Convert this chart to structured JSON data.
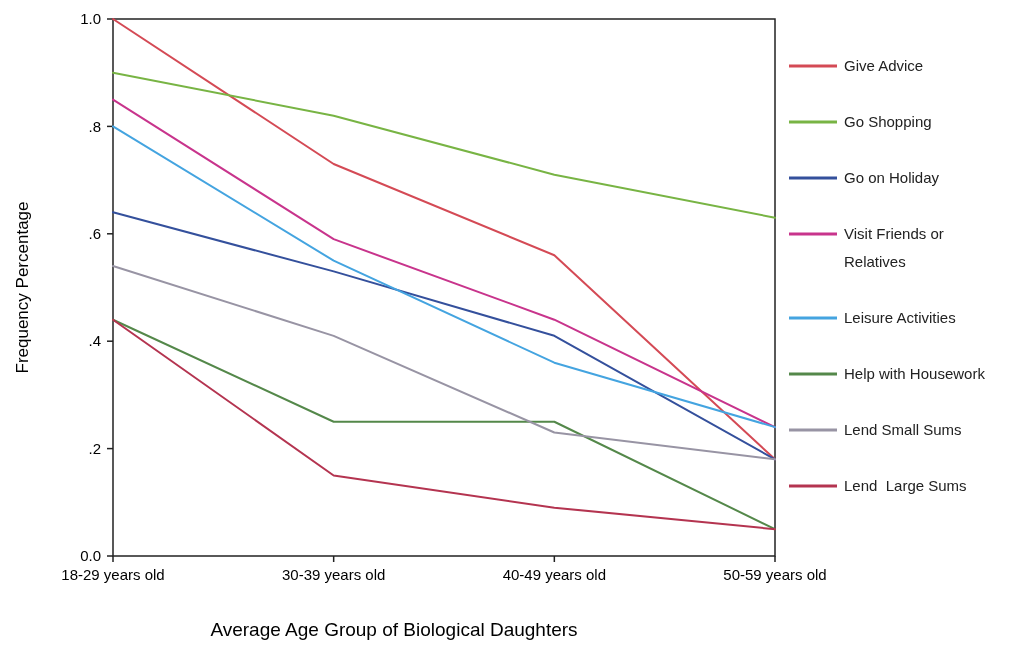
{
  "chart_data": {
    "type": "line",
    "xlabel": "Average Age Group of Biological Daughters",
    "ylabel": "Frequency Percentage",
    "categories": [
      "18-29 years old",
      "30-39 years old",
      "40-49 years old",
      "50-59 years old"
    ],
    "ylim": [
      0,
      1
    ],
    "yticks": [
      {
        "value": 0,
        "label": "0.0"
      },
      {
        "value": 0.2,
        "label": ".2"
      },
      {
        "value": 0.4,
        "label": ".4"
      },
      {
        "value": 0.6,
        "label": ".6"
      },
      {
        "value": 0.8,
        "label": ".8"
      },
      {
        "value": 1,
        "label": "1.0"
      }
    ],
    "grid": false,
    "legend": "right",
    "marker": "none",
    "line_style": "solid",
    "series": [
      {
        "name": "Give Advice",
        "color": "#d44a55",
        "values": [
          1.0,
          0.73,
          0.56,
          0.18
        ]
      },
      {
        "name": "Go Shopping",
        "color": "#78b444",
        "values": [
          0.9,
          0.82,
          0.71,
          0.63
        ]
      },
      {
        "name": "Go on Holiday",
        "color": "#34509c",
        "values": [
          0.64,
          0.53,
          0.41,
          0.18
        ]
      },
      {
        "name": "Visit Friends or Relatives",
        "color": "#c8348c",
        "values": [
          0.85,
          0.59,
          0.44,
          0.24
        ]
      },
      {
        "name": "Leisure Activities",
        "color": "#44a4e0",
        "values": [
          0.8,
          0.55,
          0.36,
          0.24
        ]
      },
      {
        "name": "Help with Housework",
        "color": "#54884a",
        "values": [
          0.44,
          0.25,
          0.25,
          0.05
        ]
      },
      {
        "name": "Lend Small Sums",
        "color": "#9894a4",
        "values": [
          0.54,
          0.41,
          0.23,
          0.18
        ]
      },
      {
        "name": "Lend  Large Sums",
        "color": "#b43450",
        "values": [
          0.44,
          0.15,
          0.09,
          0.05
        ]
      }
    ]
  }
}
